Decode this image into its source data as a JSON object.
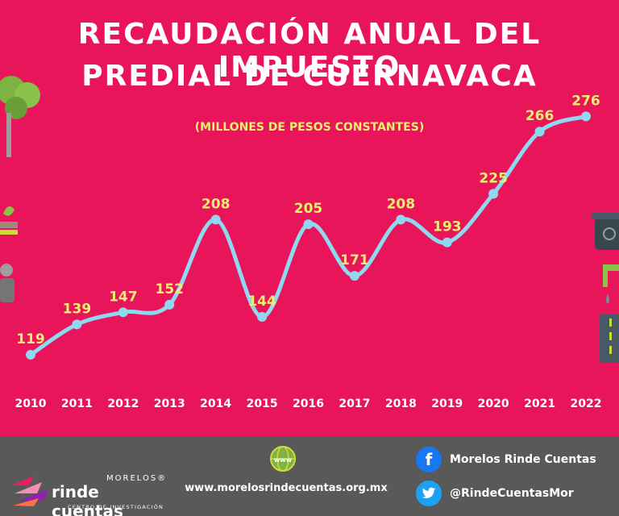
{
  "colors": {
    "background": "#E8155B",
    "line": "#8ED8F0",
    "value_label": "#E9EF6E",
    "footer_bg": "#595959"
  },
  "chart_data": {
    "type": "line",
    "title": "RECAUDACIÓN ANUAL DEL IMPUESTO PREDIAL DE CUERNAVACA",
    "title_lines": [
      "RECAUDACIÓN ANUAL DEL IMPUESTO",
      "PREDIAL DE CUERNAVACA"
    ],
    "subtitle": "(MILLONES DE PESOS CONSTANTES)",
    "categories": [
      "2010",
      "2011",
      "2012",
      "2013",
      "2014",
      "2015",
      "2016",
      "2017",
      "2018",
      "2019",
      "2020",
      "2021",
      "2022"
    ],
    "values": [
      119,
      139,
      147,
      152,
      208,
      144,
      205,
      171,
      208,
      193,
      225,
      266,
      276
    ],
    "ylim": [
      110,
      290
    ],
    "grid": false,
    "smooth": true
  },
  "footer": {
    "brand_top": "MORELOS®",
    "brand_main": "rinde cuentas",
    "brand_sub": "CENTRO DE INVESTIGACIÓN",
    "website": "www.morelosrindecuentas.org.mx",
    "facebook": "Morelos Rinde Cuentas",
    "twitter": "@RindeCuentasMor",
    "globe_text": "www"
  }
}
